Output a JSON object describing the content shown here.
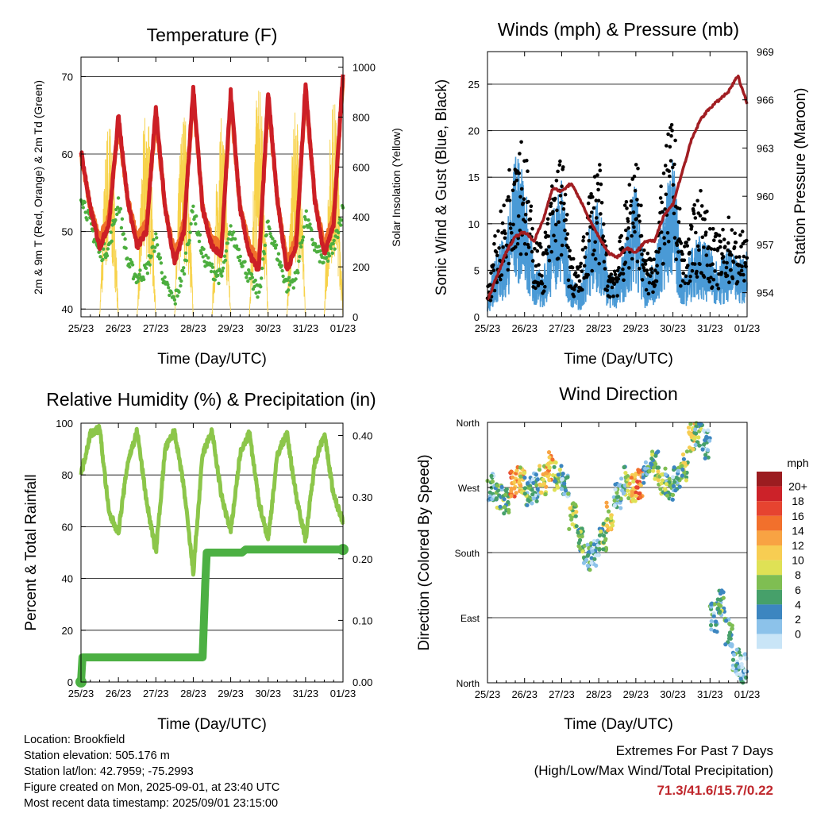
{
  "panels": [
    {
      "title": "Temperature (F)",
      "xlabel": "Time (Day/UTC)",
      "ylabel_left": "2m & 9m T (Red, Orange) & 2m Td (Green)",
      "ylabel_right": "Solar Insolation (Yellow)",
      "yticks_left": [
        "40",
        "50",
        "60",
        "70"
      ],
      "yticks_right": [
        "0",
        "200",
        "400",
        "600",
        "800",
        "1000"
      ],
      "xticks": [
        "25/23",
        "26/23",
        "27/23",
        "28/23",
        "29/23",
        "30/23",
        "31/23",
        "01/23"
      ]
    },
    {
      "title": "Winds (mph) & Pressure (mb)",
      "xlabel": "Time (Day/UTC)",
      "ylabel_left": "Sonic Wind & Gust (Blue, Black)",
      "ylabel_right": "Station Pressure (Maroon)",
      "yticks_left": [
        "0",
        "5",
        "10",
        "15",
        "20",
        "25"
      ],
      "yticks_right": [
        "954",
        "957",
        "960",
        "963",
        "966",
        "969"
      ],
      "xticks": [
        "25/23",
        "26/23",
        "27/23",
        "28/23",
        "29/23",
        "30/23",
        "31/23",
        "01/23"
      ]
    },
    {
      "title": "Relative Humidity (%) & Precipitation (in)",
      "xlabel": "Time (Day/UTC)",
      "ylabel_left": "Percent & Total Rainfall",
      "yticks_left": [
        "0",
        "20",
        "40",
        "60",
        "80",
        "100"
      ],
      "yticks_right": [
        "0.00",
        "0.10",
        "0.20",
        "0.30",
        "0.40"
      ],
      "xticks": [
        "25/23",
        "26/23",
        "27/23",
        "28/23",
        "29/23",
        "30/23",
        "31/23",
        "01/23"
      ]
    },
    {
      "title": "Wind Direction",
      "xlabel": "Time (Day/UTC)",
      "ylabel_left": "Direction (Colored By Speed)",
      "yticks_left": [
        "North",
        "East",
        "South",
        "West",
        "North"
      ],
      "xticks": [
        "25/23",
        "26/23",
        "27/23",
        "28/23",
        "29/23",
        "30/23",
        "31/23",
        "01/23"
      ]
    }
  ],
  "legend": {
    "title": "mph",
    "labels": [
      "20+",
      "18",
      "16",
      "14",
      "12",
      "10",
      "8",
      "6",
      "4",
      "2",
      "0"
    ],
    "colors": [
      "#9b1c20",
      "#cc2229",
      "#e64430",
      "#f2702c",
      "#f8a343",
      "#f7cd52",
      "#dfe155",
      "#7fbe52",
      "#46a06a",
      "#3c86c0",
      "#8cc2ea",
      "#c9e5f7"
    ]
  },
  "colors": {
    "temp_2m": "#cc1f26",
    "temp_9m": "#f0712a",
    "dewpoint": "#4cae3e",
    "solar": "#f7d24a",
    "wind": "#4a9ad6",
    "gust": "#000000",
    "pressure": "#a11d22",
    "rh": "#8cc64a",
    "precip": "#4cb043"
  },
  "chart_data": [
    {
      "type": "line",
      "title": "Temperature (F)",
      "xlabel": "Time (Day/UTC)",
      "ylabel": "2m & 9m T (Red, Orange) & 2m Td (Green)",
      "y2label": "Solar Insolation (Yellow)",
      "xlim": [
        0,
        7
      ],
      "ylim": [
        39,
        72.5
      ],
      "y2lim": [
        0,
        1040
      ],
      "x": [
        0,
        0.25,
        0.5,
        0.75,
        1,
        1.25,
        1.5,
        1.75,
        2,
        2.25,
        2.5,
        2.75,
        3,
        3.25,
        3.5,
        3.75,
        4,
        4.25,
        4.5,
        4.75,
        5,
        5.25,
        5.5,
        5.75,
        6,
        6.25,
        6.5,
        6.75,
        7
      ],
      "series": [
        {
          "name": "2m T",
          "axis": "left",
          "values": [
            60.5,
            53,
            48,
            51,
            65,
            54,
            48,
            50,
            66,
            53,
            46,
            50,
            68.5,
            53,
            48,
            47,
            68,
            53,
            47,
            45,
            68,
            54,
            45,
            48,
            69,
            54,
            47,
            51,
            70.5
          ]
        },
        {
          "name": "9m T",
          "axis": "left",
          "values": [
            60,
            53,
            49,
            52,
            64,
            54,
            49,
            51,
            65,
            53,
            47,
            51,
            67.5,
            53,
            49,
            48,
            67,
            53,
            48,
            46,
            67,
            54,
            46,
            49,
            68,
            54,
            48,
            52,
            69.5
          ]
        },
        {
          "name": "2m Td",
          "axis": "left",
          "values": [
            55,
            51,
            47,
            48,
            54,
            46,
            44,
            45,
            49,
            43,
            41,
            45,
            53,
            47,
            45,
            44,
            50,
            47,
            44,
            42,
            51,
            47,
            43,
            44,
            52,
            48,
            46,
            48,
            53
          ]
        },
        {
          "name": "Solar",
          "axis": "right",
          "values": [
            0,
            0,
            0,
            750,
            850,
            0,
            0,
            800,
            900,
            0,
            0,
            700,
            950,
            0,
            0,
            650,
            900,
            0,
            0,
            850,
            1000,
            0,
            0,
            750,
            900,
            0,
            0,
            800,
            950
          ]
        }
      ]
    },
    {
      "type": "scatter",
      "title": "Winds (mph) & Pressure (mb)",
      "xlabel": "Time (Day/UTC)",
      "ylabel": "Sonic Wind & Gust (Blue, Black)",
      "y2label": "Station Pressure (Maroon)",
      "xlim": [
        0,
        7
      ],
      "ylim": [
        0,
        28.5
      ],
      "y2lim": [
        952.5,
        969
      ],
      "x": [
        0,
        0.25,
        0.5,
        0.75,
        1,
        1.25,
        1.5,
        1.75,
        2,
        2.25,
        2.5,
        2.75,
        3,
        3.25,
        3.5,
        3.75,
        4,
        4.25,
        4.5,
        4.75,
        5,
        5.25,
        5.5,
        5.75,
        6,
        6.25,
        6.5,
        6.75,
        7
      ],
      "series": [
        {
          "name": "Gust",
          "axis": "left",
          "values": [
            3,
            9,
            12,
            21,
            18,
            8,
            7,
            14,
            17,
            6,
            5,
            13,
            16,
            5,
            6,
            12,
            18,
            6,
            7,
            15,
            21,
            7,
            10,
            13,
            9,
            8,
            10,
            8,
            9
          ]
        },
        {
          "name": "Wind",
          "axis": "left",
          "values": [
            1,
            5,
            6,
            12,
            10,
            4,
            3,
            8,
            10,
            3,
            2,
            7,
            9,
            3,
            3,
            6,
            10,
            3,
            4,
            8,
            12,
            3,
            5,
            6,
            5,
            4,
            5,
            4,
            5
          ]
        },
        {
          "name": "Pressure",
          "axis": "right",
          "values": [
            953.5,
            955,
            956.5,
            957.5,
            957.8,
            957.2,
            958.5,
            960.5,
            960.3,
            960.8,
            959.8,
            958.5,
            957.5,
            956.5,
            956.2,
            956.8,
            956.5,
            957.2,
            957.2,
            958.8,
            959.5,
            961.5,
            963.5,
            964.8,
            965.5,
            966,
            966.5,
            967.5,
            965.8
          ]
        }
      ]
    },
    {
      "type": "line",
      "title": "Relative Humidity (%) & Precipitation (in)",
      "xlabel": "Time (Day/UTC)",
      "ylabel": "Percent & Total Rainfall",
      "xlim": [
        0,
        7
      ],
      "ylim": [
        0,
        100
      ],
      "y2lim": [
        0,
        0.42
      ],
      "x": [
        0,
        0.25,
        0.5,
        0.75,
        1,
        1.25,
        1.5,
        1.75,
        2,
        2.25,
        2.5,
        2.75,
        3,
        3.25,
        3.5,
        3.75,
        4,
        4.25,
        4.5,
        4.75,
        5,
        5.25,
        5.5,
        5.75,
        6,
        6.25,
        6.5,
        6.75,
        7
      ],
      "series": [
        {
          "name": "RH",
          "axis": "left",
          "values": [
            80,
            96,
            98,
            65,
            58,
            85,
            97,
            70,
            50,
            90,
            97,
            75,
            42,
            88,
            97,
            72,
            58,
            88,
            96,
            70,
            55,
            88,
            96,
            72,
            55,
            85,
            96,
            72,
            62
          ]
        },
        {
          "name": "Precip",
          "axis": "right",
          "values": [
            0,
            0.04,
            0.04,
            0.04,
            0.04,
            0.04,
            0.04,
            0.04,
            0.04,
            0.04,
            0.04,
            0.04,
            0.04,
            0.21,
            0.21,
            0.215,
            0.215,
            0.215,
            0.215,
            0.215,
            0.215,
            0.215,
            0.215,
            0.215,
            0.215,
            0.215,
            0.215,
            0.215,
            0.215
          ]
        }
      ]
    },
    {
      "type": "scatter",
      "title": "Wind Direction",
      "xlabel": "Time (Day/UTC)",
      "ylabel": "Direction (Colored By Speed)",
      "xlim": [
        0,
        7
      ],
      "ylim": [
        0,
        360
      ],
      "x": [
        0.1,
        0.3,
        0.5,
        0.7,
        0.9,
        1.1,
        1.3,
        1.5,
        1.7,
        1.9,
        2.1,
        2.3,
        2.5,
        2.7,
        2.9,
        3.1,
        3.3,
        3.5,
        3.7,
        3.9,
        4.1,
        4.3,
        4.5,
        4.7,
        4.9,
        5.1,
        5.3,
        5.5,
        5.7,
        5.9,
        6.1,
        6.3,
        6.5,
        6.7,
        6.9
      ],
      "series": [
        {
          "name": "Direction",
          "values": [
            270,
            260,
            250,
            275,
            280,
            265,
            270,
            280,
            300,
            285,
            275,
            230,
            200,
            175,
            180,
            200,
            230,
            260,
            280,
            270,
            275,
            290,
            300,
            280,
            270,
            285,
            300,
            340,
            345,
            330,
            90,
            110,
            70,
            30,
            20
          ]
        },
        {
          "name": "Speed",
          "values": [
            4,
            6,
            8,
            15,
            12,
            6,
            4,
            11,
            13,
            8,
            4,
            9,
            7,
            5,
            3,
            8,
            11,
            4,
            6,
            12,
            15,
            5,
            7,
            9,
            6,
            4,
            8,
            10,
            6,
            3,
            4,
            6,
            5,
            4,
            3
          ]
        }
      ]
    }
  ],
  "info": {
    "location": "Location: Brookfield",
    "elevation": "Station elevation: 505.176 m",
    "latlon": "Station lat/lon: 42.7959; -75.2993",
    "created": "Figure created on Mon, 2025-09-01, at 23:40 UTC",
    "recent": "Most recent data timestamp: 2025/09/01 23:15:00"
  },
  "extremes": {
    "heading": "Extremes For Past 7 Days",
    "subheading": "(High/Low/Max Wind/Total Precipitation)",
    "values": "71.3/41.6/15.7/0.22"
  }
}
